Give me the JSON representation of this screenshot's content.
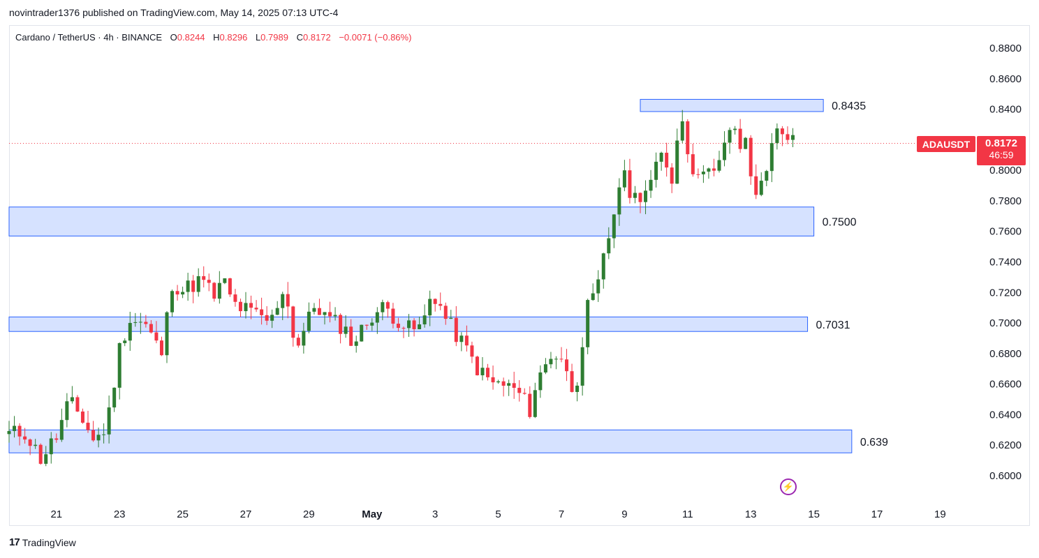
{
  "header": {
    "published_by": "novintrader1376 published on TradingView.com, May 14, 2025 07:13 UTC-4"
  },
  "legend": {
    "symbol": "Cardano / TetherUS · 4h · BINANCE",
    "o_label": "O",
    "o_value": "0.8244",
    "h_label": "H",
    "h_value": "0.8296",
    "l_label": "L",
    "l_value": "0.7989",
    "c_label": "C",
    "c_value": "0.8172",
    "change": "−0.0071 (−0.86%)"
  },
  "price_scale": {
    "ticker": "ADAUSDT",
    "last_price": "0.8172",
    "countdown": "46:59"
  },
  "footer": {
    "brand": "TradingView",
    "logo": "17"
  },
  "colors": {
    "up": "#2e7d32",
    "down": "#f23645",
    "zone_fill": "#d6e2ff",
    "zone_border": "#2962ff",
    "accent": "#9c27b0"
  },
  "icons": {
    "flash": "lightning-icon"
  },
  "chart_data": {
    "type": "candlestick",
    "ylim": [
      0.59,
      0.89
    ],
    "y_ticks": [
      "0.8800",
      "0.8600",
      "0.8400",
      "0.8200",
      "0.8000",
      "0.7800",
      "0.7600",
      "0.7400",
      "0.7200",
      "0.7000",
      "0.6800",
      "0.6600",
      "0.6400",
      "0.6200",
      "0.6000"
    ],
    "y_tick_values": [
      0.88,
      0.86,
      0.84,
      0.82,
      0.8,
      0.78,
      0.76,
      0.74,
      0.72,
      0.7,
      0.68,
      0.66,
      0.64,
      0.62,
      0.6
    ],
    "x_ticks": [
      {
        "label": "21",
        "day": 21
      },
      {
        "label": "23",
        "day": 23
      },
      {
        "label": "25",
        "day": 25
      },
      {
        "label": "27",
        "day": 27
      },
      {
        "label": "29",
        "day": 29
      },
      {
        "label": "May",
        "day": 31
      },
      {
        "label": "3",
        "day": 33
      },
      {
        "label": "5",
        "day": 35
      },
      {
        "label": "7",
        "day": 37
      },
      {
        "label": "9",
        "day": 39
      },
      {
        "label": "11",
        "day": 41
      },
      {
        "label": "13",
        "day": 43
      },
      {
        "label": "15",
        "day": 45
      },
      {
        "label": "17",
        "day": 47
      },
      {
        "label": "19",
        "day": 49
      }
    ],
    "zones": [
      {
        "label": "0.8435",
        "low": 0.838,
        "high": 0.846,
        "x_start": 39.5,
        "x_end": 45.3
      },
      {
        "label": "0.7500",
        "low": 0.7565,
        "high": 0.7755,
        "x_start": 19.5,
        "x_end": 45.0
      },
      {
        "label": "0.7031",
        "low": 0.694,
        "high": 0.7035,
        "x_start": 19.5,
        "x_end": 44.8
      },
      {
        "label": "0.639",
        "low": 0.6145,
        "high": 0.6295,
        "x_start": 19.5,
        "x_end": 46.2
      }
    ],
    "last_price": 0.8172,
    "checkpoints": [
      [
        19.5,
        0.627
      ],
      [
        20.0,
        0.628
      ],
      [
        20.5,
        0.611
      ],
      [
        21.0,
        0.625
      ],
      [
        21.4,
        0.648
      ],
      [
        21.8,
        0.638
      ],
      [
        22.2,
        0.622
      ],
      [
        22.6,
        0.632
      ],
      [
        23.0,
        0.683
      ],
      [
        23.3,
        0.702
      ],
      [
        23.8,
        0.699
      ],
      [
        24.2,
        0.684
      ],
      [
        24.4,
        0.678
      ],
      [
        24.6,
        0.727
      ],
      [
        25.0,
        0.721
      ],
      [
        25.6,
        0.728
      ],
      [
        26.0,
        0.717
      ],
      [
        26.3,
        0.727
      ],
      [
        26.6,
        0.712
      ],
      [
        27.2,
        0.706
      ],
      [
        27.8,
        0.7
      ],
      [
        28.2,
        0.724
      ],
      [
        28.6,
        0.683
      ],
      [
        29.2,
        0.712
      ],
      [
        29.6,
        0.702
      ],
      [
        30.1,
        0.697
      ],
      [
        30.4,
        0.686
      ],
      [
        31.0,
        0.705
      ],
      [
        31.4,
        0.71
      ],
      [
        31.8,
        0.702
      ],
      [
        32.2,
        0.695
      ],
      [
        32.6,
        0.697
      ],
      [
        32.9,
        0.721
      ],
      [
        33.4,
        0.7
      ],
      [
        33.9,
        0.685
      ],
      [
        34.4,
        0.668
      ],
      [
        34.8,
        0.66
      ],
      [
        35.2,
        0.659
      ],
      [
        35.6,
        0.655
      ],
      [
        36.0,
        0.643
      ],
      [
        36.2,
        0.66
      ],
      [
        36.7,
        0.68
      ],
      [
        37.0,
        0.677
      ],
      [
        37.3,
        0.656
      ],
      [
        37.5,
        0.664
      ],
      [
        37.8,
        0.708
      ],
      [
        38.1,
        0.717
      ],
      [
        38.3,
        0.738
      ],
      [
        38.6,
        0.765
      ],
      [
        38.9,
        0.798
      ],
      [
        39.3,
        0.781
      ],
      [
        39.8,
        0.79
      ],
      [
        40.2,
        0.81
      ],
      [
        40.5,
        0.795
      ],
      [
        40.8,
        0.838
      ],
      [
        41.0,
        0.815
      ],
      [
        41.3,
        0.79
      ],
      [
        41.6,
        0.809
      ],
      [
        41.9,
        0.795
      ],
      [
        42.2,
        0.818
      ],
      [
        42.5,
        0.828
      ],
      [
        42.7,
        0.812
      ],
      [
        42.9,
        0.818
      ],
      [
        43.1,
        0.776
      ],
      [
        43.3,
        0.793
      ],
      [
        43.6,
        0.808
      ],
      [
        43.9,
        0.832
      ],
      [
        44.1,
        0.822
      ],
      [
        44.4,
        0.817
      ]
    ]
  }
}
